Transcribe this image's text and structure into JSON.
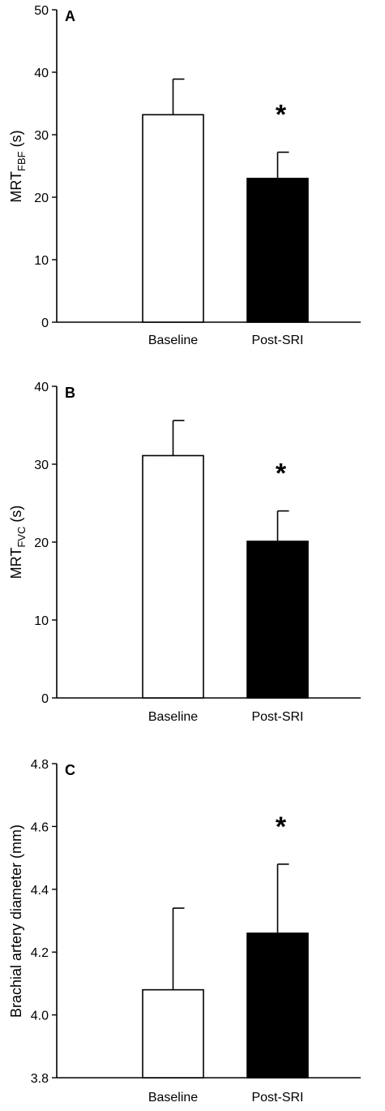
{
  "chart_data": [
    {
      "type": "bar",
      "panel_label": "A",
      "categories": [
        "Baseline",
        "Post-SRI"
      ],
      "values": [
        33.2,
        23.0
      ],
      "error": [
        5.7,
        4.2
      ],
      "bar_colors": [
        "#ffffff",
        "#000000"
      ],
      "ylabel_main": "MRT",
      "ylabel_sub": "FBF",
      "ylabel_suffix": " (s)",
      "ylim": [
        0,
        50
      ],
      "yticks": [
        "0",
        "10",
        "20",
        "30",
        "40",
        "50"
      ],
      "significance": [
        "",
        "*"
      ]
    },
    {
      "type": "bar",
      "panel_label": "B",
      "categories": [
        "Baseline",
        "Post-SRI"
      ],
      "values": [
        31.1,
        20.1
      ],
      "error": [
        4.5,
        3.9
      ],
      "bar_colors": [
        "#ffffff",
        "#000000"
      ],
      "ylabel_main": "MRT",
      "ylabel_sub": "FVC",
      "ylabel_suffix": " (s)",
      "ylim": [
        0,
        40
      ],
      "yticks": [
        "0",
        "10",
        "20",
        "30",
        "40"
      ],
      "significance": [
        "",
        "*"
      ]
    },
    {
      "type": "bar",
      "panel_label": "C",
      "categories": [
        "Baseline",
        "Post-SRI"
      ],
      "values": [
        4.08,
        4.26
      ],
      "error": [
        0.26,
        0.22
      ],
      "bar_colors": [
        "#ffffff",
        "#000000"
      ],
      "ylabel_main": "Brachial artery diameter (mm)",
      "ylabel_sub": "",
      "ylabel_suffix": "",
      "ylim": [
        3.8,
        4.8
      ],
      "yticks": [
        "3.8",
        "4.0",
        "4.2",
        "4.4",
        "4.6",
        "4.8"
      ],
      "significance": [
        "",
        "*"
      ]
    }
  ]
}
